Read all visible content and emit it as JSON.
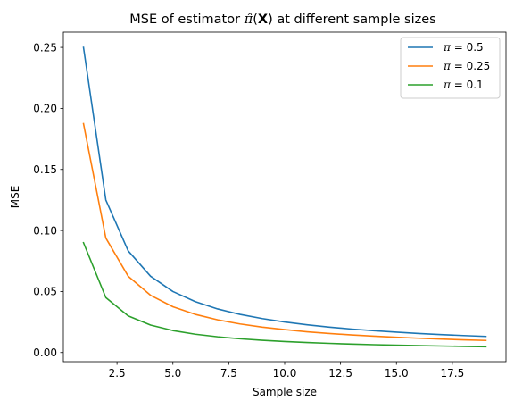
{
  "chart_data": {
    "type": "line",
    "title": "MSE of estimator π̂(X) at different sample sizes",
    "title_parts": {
      "prefix": "MSE of estimator ",
      "pi": "π̂",
      "open": "(",
      "bold_x": "X",
      "suffix": ") at different sample sizes"
    },
    "xlabel": "Sample size",
    "ylabel": "MSE",
    "xlim": [
      0.1,
      19.9
    ],
    "ylim": [
      -0.0075,
      0.2625
    ],
    "xticks": [
      2.5,
      5.0,
      7.5,
      10.0,
      12.5,
      15.0,
      17.5
    ],
    "xtick_labels": [
      "2.5",
      "5.0",
      "7.5",
      "10.0",
      "12.5",
      "15.0",
      "17.5"
    ],
    "yticks": [
      0.0,
      0.05,
      0.1,
      0.15,
      0.2,
      0.25
    ],
    "ytick_labels": [
      "0.00",
      "0.05",
      "0.10",
      "0.15",
      "0.20",
      "0.25"
    ],
    "grid": false,
    "legend_position": "top-right",
    "x": [
      1,
      2,
      3,
      4,
      5,
      6,
      7,
      8,
      9,
      10,
      11,
      12,
      13,
      14,
      15,
      16,
      17,
      18,
      19
    ],
    "series": [
      {
        "name": "π = 0.5",
        "name_parts": {
          "symbol": "π",
          "rest": " = 0.5"
        },
        "color": "#1f77b4",
        "values": [
          0.25,
          0.125,
          0.0833,
          0.0625,
          0.05,
          0.0417,
          0.0357,
          0.03125,
          0.0278,
          0.025,
          0.0227,
          0.0208,
          0.0192,
          0.0179,
          0.0167,
          0.0156,
          0.0147,
          0.0139,
          0.0132
        ]
      },
      {
        "name": "π = 0.25",
        "name_parts": {
          "symbol": "π",
          "rest": " = 0.25"
        },
        "color": "#ff7f0e",
        "values": [
          0.1875,
          0.0938,
          0.0625,
          0.0469,
          0.0375,
          0.03125,
          0.0268,
          0.0234,
          0.0208,
          0.0188,
          0.017,
          0.0156,
          0.0144,
          0.0134,
          0.0125,
          0.0117,
          0.011,
          0.0104,
          0.0099
        ]
      },
      {
        "name": "π = 0.1",
        "name_parts": {
          "symbol": "π",
          "rest": " = 0.1"
        },
        "color": "#2ca02c",
        "values": [
          0.09,
          0.045,
          0.03,
          0.0225,
          0.018,
          0.015,
          0.0129,
          0.01125,
          0.01,
          0.009,
          0.0082,
          0.0075,
          0.0069,
          0.0064,
          0.006,
          0.0056,
          0.0053,
          0.005,
          0.0047
        ]
      }
    ]
  }
}
